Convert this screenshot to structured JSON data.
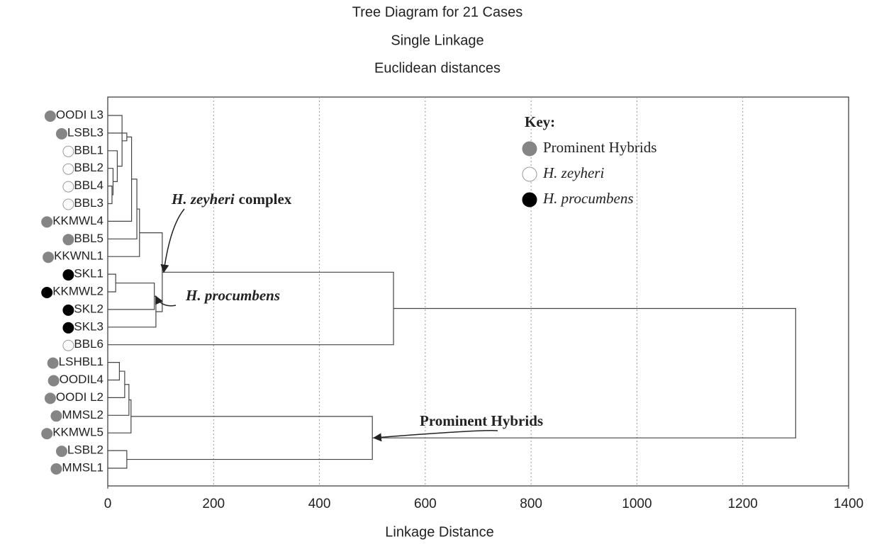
{
  "chart_data": {
    "type": "dendrogram",
    "title": "Tree Diagram for 21 Cases",
    "subtitle": "Single Linkage",
    "subtitle2": "Euclidean distances",
    "xlabel": "Linkage Distance",
    "xlim": [
      0,
      1400
    ],
    "xticks": [
      0,
      200,
      400,
      600,
      800,
      1000,
      1200,
      1400
    ],
    "grid": true,
    "key": {
      "title": "Key:",
      "items": [
        {
          "name": "Prominent Hybrids",
          "color": "#858585",
          "stroke": "#858585",
          "italic": false
        },
        {
          "name": "H. zeyheri",
          "color": "#ffffff",
          "stroke": "#999999",
          "italic": true
        },
        {
          "name": "H. procumbens",
          "color": "#000000",
          "stroke": "#000000",
          "italic": true
        }
      ]
    },
    "leaves": [
      {
        "label": "OODI L3",
        "group": 0
      },
      {
        "label": "LSBL3",
        "group": 0
      },
      {
        "label": "BBL1",
        "group": 1
      },
      {
        "label": "BBL2",
        "group": 1
      },
      {
        "label": "BBL4",
        "group": 1
      },
      {
        "label": "BBL3",
        "group": 1
      },
      {
        "label": "KKMWL4",
        "group": 0
      },
      {
        "label": "BBL5",
        "group": 0
      },
      {
        "label": "KKWNL1",
        "group": 0
      },
      {
        "label": "SKL1",
        "group": 2
      },
      {
        "label": "KKMWL2",
        "group": 2
      },
      {
        "label": "SKL2",
        "group": 2
      },
      {
        "label": "SKL3",
        "group": 2
      },
      {
        "label": "BBL6",
        "group": 1
      },
      {
        "label": "LSHBL1",
        "group": 0
      },
      {
        "label": "OODIL4",
        "group": 0
      },
      {
        "label": "OODI L2",
        "group": 0
      },
      {
        "label": "MMSL2",
        "group": 0
      },
      {
        "label": "KKMWL5",
        "group": 0
      },
      {
        "label": "LSBL2",
        "group": 0
      },
      {
        "label": "MMSL1",
        "group": 0
      }
    ],
    "merges": [
      {
        "children": [
          4,
          5
        ],
        "height": 8
      },
      {
        "children": [
          3,
          21
        ],
        "height": 10
      },
      {
        "children": [
          2,
          22
        ],
        "height": 18
      },
      {
        "children": [
          0,
          23
        ],
        "height": 27
      },
      {
        "children": [
          1,
          24
        ],
        "height": 36
      },
      {
        "children": [
          6,
          25
        ],
        "height": 45
      },
      {
        "children": [
          7,
          26
        ],
        "height": 55
      },
      {
        "children": [
          8,
          27
        ],
        "height": 60
      },
      {
        "children": [
          9,
          10
        ],
        "height": 15
      },
      {
        "children": [
          11,
          29
        ],
        "height": 88
      },
      {
        "children": [
          12,
          30
        ],
        "height": 91
      },
      {
        "children": [
          28,
          31
        ],
        "height": 103
      },
      {
        "children": [
          13,
          32
        ],
        "height": 540
      },
      {
        "children": [
          14,
          15
        ],
        "height": 22
      },
      {
        "children": [
          16,
          34
        ],
        "height": 32
      },
      {
        "children": [
          17,
          35
        ],
        "height": 40
      },
      {
        "children": [
          18,
          36
        ],
        "height": 44
      },
      {
        "children": [
          19,
          20
        ],
        "height": 36
      },
      {
        "children": [
          37,
          38
        ],
        "height": 500
      },
      {
        "children": [
          33,
          39
        ],
        "height": 1300
      }
    ],
    "annotations": [
      {
        "parts": [
          "H. zeyheri",
          "complex"
        ],
        "node": 32
      },
      {
        "parts": [
          "H. procumbens"
        ],
        "node": 30
      },
      {
        "parts": [
          "Prominent Hybrids"
        ],
        "node": 39
      }
    ]
  }
}
